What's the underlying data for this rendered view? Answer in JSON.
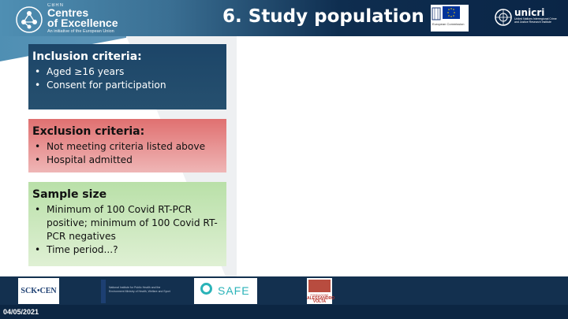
{
  "header": {
    "coe_small": "CBRN",
    "coe_line1": "Centres",
    "coe_line2": "of Excellence",
    "coe_sub": "An initiative of the European Union",
    "title": "6. Study population",
    "eu_text": "European Commission",
    "unicri_name": "unicri",
    "unicri_sub": "United Nations Interregional Crime and Justice Research Institute"
  },
  "inclusion": {
    "heading": "Inclusion criteria:",
    "items": [
      "Aged ≥16 years",
      "Consent for participation"
    ]
  },
  "exclusion": {
    "heading": "Exclusion criteria:",
    "items": [
      "Not meeting criteria listed above",
      "Hospital admitted"
    ]
  },
  "sample": {
    "heading": "Sample size",
    "items": [
      "Minimum of 100 Covid RT-PCR positive; minimum of 100 Covid RT-PCR negatives",
      "Time period...?"
    ]
  },
  "footer": {
    "date": "04/05/2021",
    "logo_sck": "SCK•CEN",
    "logo_nl": "National Institute for Public Health and the Environment Ministry of Health, Welfare and Sport",
    "logo_safe": "SAFE",
    "logo_volta_top": "FONDAZIONE",
    "logo_volta_name": "ALESSANDRO VOLTA"
  },
  "colors": {
    "banner_dark": "#0a2546",
    "inclusion_bg": "#1c4568",
    "exclusion_bg": "#e07070",
    "sample_bg": "#b9e0a8",
    "footer_bg": "#13304f"
  }
}
